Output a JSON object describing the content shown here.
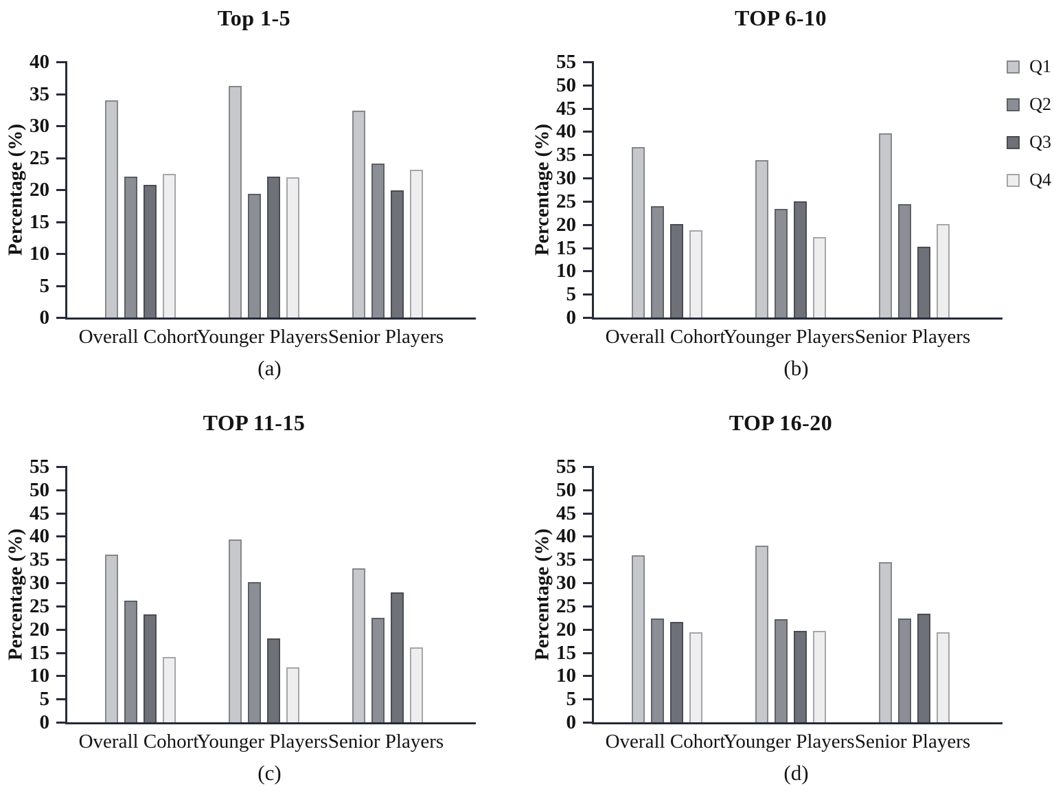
{
  "figure": {
    "colors": {
      "axis": "#262b38",
      "text": "#141414",
      "background": "#ffffff"
    },
    "legend": {
      "position": "top-right",
      "items": [
        {
          "label": "Q1",
          "fill": "#c6c8cc",
          "border": "#85878c"
        },
        {
          "label": "Q2",
          "fill": "#8b8e94",
          "border": "#5c5f65"
        },
        {
          "label": "Q3",
          "fill": "#6e7177",
          "border": "#494c52"
        },
        {
          "label": "Q4",
          "fill": "#eeeeef",
          "border": "#a4a6aa"
        }
      ]
    }
  },
  "chart_data": [
    {
      "type": "bar",
      "title": "Top 1-5",
      "caption": "(a)",
      "ylabel": "Percentage (%)",
      "xlabel": "",
      "ylim": [
        0,
        40
      ],
      "ytick_step": 5,
      "grid": false,
      "legend_visible": false,
      "categories": [
        "Overall Cohort",
        "Younger Players",
        "Senior Players"
      ],
      "series": [
        {
          "name": "Q1",
          "values": [
            34.0,
            36.2,
            32.4
          ]
        },
        {
          "name": "Q2",
          "values": [
            22.0,
            19.4,
            24.1
          ]
        },
        {
          "name": "Q3",
          "values": [
            20.8,
            22.0,
            19.9
          ]
        },
        {
          "name": "Q4",
          "values": [
            22.5,
            21.9,
            23.1
          ]
        }
      ]
    },
    {
      "type": "bar",
      "title": "TOP 6-10",
      "caption": "(b)",
      "ylabel": "Percentage (%)",
      "xlabel": "",
      "ylim": [
        0,
        55
      ],
      "ytick_step": 5,
      "grid": false,
      "legend_visible": true,
      "categories": [
        "Overall Cohort",
        "Younger Players",
        "Senior Players"
      ],
      "series": [
        {
          "name": "Q1",
          "values": [
            36.7,
            33.8,
            39.6
          ]
        },
        {
          "name": "Q2",
          "values": [
            23.9,
            23.3,
            24.4
          ]
        },
        {
          "name": "Q3",
          "values": [
            20.1,
            25.0,
            15.2
          ]
        },
        {
          "name": "Q4",
          "values": [
            18.8,
            17.3,
            20.1
          ]
        }
      ]
    },
    {
      "type": "bar",
      "title": "TOP 11-15",
      "caption": "(c)",
      "ylabel": "Percentage (%)",
      "xlabel": "",
      "ylim": [
        0,
        55
      ],
      "ytick_step": 5,
      "grid": false,
      "legend_visible": false,
      "categories": [
        "Overall Cohort",
        "Younger Players",
        "Senior Players"
      ],
      "series": [
        {
          "name": "Q1",
          "values": [
            36.1,
            39.3,
            33.1
          ]
        },
        {
          "name": "Q2",
          "values": [
            26.2,
            30.2,
            22.4
          ]
        },
        {
          "name": "Q3",
          "values": [
            23.2,
            18.1,
            27.9
          ]
        },
        {
          "name": "Q4",
          "values": [
            14.1,
            11.8,
            16.1
          ]
        }
      ]
    },
    {
      "type": "bar",
      "title": "TOP 16-20",
      "caption": "(d)",
      "ylabel": "Percentage (%)",
      "xlabel": "",
      "ylim": [
        0,
        55
      ],
      "ytick_step": 5,
      "grid": false,
      "legend_visible": false,
      "categories": [
        "Overall Cohort",
        "Younger Players",
        "Senior Players"
      ],
      "series": [
        {
          "name": "Q1",
          "values": [
            36.0,
            38.0,
            34.5
          ]
        },
        {
          "name": "Q2",
          "values": [
            22.3,
            22.2,
            22.3
          ]
        },
        {
          "name": "Q3",
          "values": [
            21.6,
            19.6,
            23.4
          ]
        },
        {
          "name": "Q4",
          "values": [
            19.4,
            19.6,
            19.3
          ]
        }
      ]
    }
  ]
}
